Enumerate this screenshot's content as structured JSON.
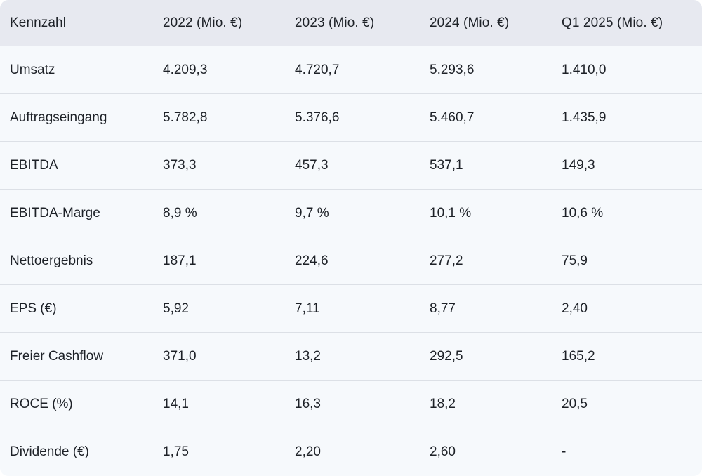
{
  "table": {
    "columns": [
      "Kennzahl",
      "2022 (Mio. €)",
      "2023 (Mio. €)",
      "2024 (Mio. €)",
      "Q1 2025 (Mio. €)"
    ],
    "rows": [
      {
        "label": "Umsatz",
        "values": [
          "4.209,3",
          "4.720,7",
          "5.293,6",
          "1.410,0"
        ]
      },
      {
        "label": "Auftragseingang",
        "values": [
          "5.782,8",
          "5.376,6",
          "5.460,7",
          "1.435,9"
        ]
      },
      {
        "label": "EBITDA",
        "values": [
          "373,3",
          "457,3",
          "537,1",
          "149,3"
        ]
      },
      {
        "label": "EBITDA-Marge",
        "values": [
          "8,9 %",
          "9,7 %",
          "10,1 %",
          "10,6 %"
        ]
      },
      {
        "label": "Nettoergebnis",
        "values": [
          "187,1",
          "224,6",
          "277,2",
          "75,9"
        ]
      },
      {
        "label": "EPS (€)",
        "values": [
          "5,92",
          "7,11",
          "8,77",
          "2,40"
        ]
      },
      {
        "label": "Freier Cashflow",
        "values": [
          "371,0",
          "13,2",
          "292,5",
          "165,2"
        ]
      },
      {
        "label": "ROCE (%)",
        "values": [
          "14,1",
          "16,3",
          "18,2",
          "20,5"
        ]
      },
      {
        "label": "Dividende (€)",
        "values": [
          "1,75",
          "2,20",
          "2,60",
          "-"
        ]
      }
    ]
  },
  "colors": {
    "header_bg": "#e7e9f0",
    "row_bg": "#f6f9fc",
    "divider": "#dce0e6",
    "text": "#1d2127",
    "page_bg": "#ffffff"
  },
  "chart_data": {
    "type": "table",
    "title": "Kennzahl",
    "categories": [
      "2022",
      "2023",
      "2024",
      "Q1 2025"
    ],
    "unit": "Mio. €",
    "series": [
      {
        "name": "Umsatz (Mio. €)",
        "values": [
          4209.3,
          4720.7,
          5293.6,
          1410.0
        ]
      },
      {
        "name": "Auftragseingang (Mio. €)",
        "values": [
          5782.8,
          5376.6,
          5460.7,
          1435.9
        ]
      },
      {
        "name": "EBITDA (Mio. €)",
        "values": [
          373.3,
          457.3,
          537.1,
          149.3
        ]
      },
      {
        "name": "EBITDA-Marge (%)",
        "values": [
          8.9,
          9.7,
          10.1,
          10.6
        ]
      },
      {
        "name": "Nettoergebnis (Mio. €)",
        "values": [
          187.1,
          224.6,
          277.2,
          75.9
        ]
      },
      {
        "name": "EPS (€)",
        "values": [
          5.92,
          7.11,
          8.77,
          2.4
        ]
      },
      {
        "name": "Freier Cashflow (Mio. €)",
        "values": [
          371.0,
          13.2,
          292.5,
          165.2
        ]
      },
      {
        "name": "ROCE (%)",
        "values": [
          14.1,
          16.3,
          18.2,
          20.5
        ]
      },
      {
        "name": "Dividende (€)",
        "values": [
          1.75,
          2.2,
          2.6,
          null
        ]
      }
    ]
  }
}
